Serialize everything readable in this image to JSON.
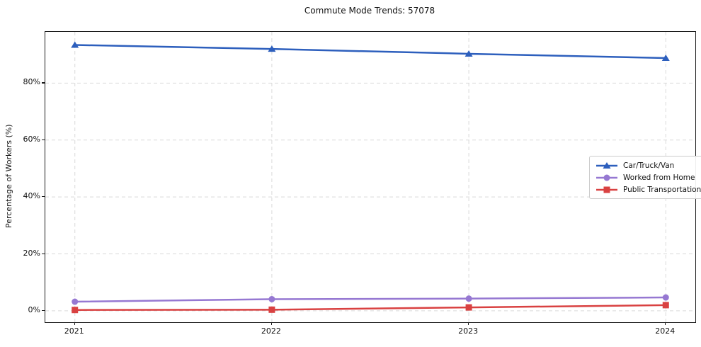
{
  "chart_data": {
    "type": "line",
    "title": "Commute Mode Trends: 57078",
    "xlabel": "",
    "ylabel": "Percentage of Workers (%)",
    "x": [
      2021,
      2022,
      2023,
      2024
    ],
    "xtick_labels": [
      "2021",
      "2022",
      "2023",
      "2024"
    ],
    "ytick_values": [
      0,
      20,
      40,
      60,
      80
    ],
    "ytick_labels": [
      "0%",
      "20%",
      "40%",
      "60%",
      "80%"
    ],
    "xlim": [
      2020.85,
      2024.15
    ],
    "ylim": [
      -4,
      98
    ],
    "grid": true,
    "grid_style": "dashed",
    "grid_color": "#d9d9d9",
    "legend_position": "center-right",
    "series": [
      {
        "name": "Car/Truck/Van",
        "color": "#2d5fbd",
        "marker": "triangle",
        "values": [
          93.4,
          92.0,
          90.3,
          88.8
        ]
      },
      {
        "name": "Worked from Home",
        "color": "#9678d2",
        "marker": "circle",
        "values": [
          3.2,
          4.1,
          4.3,
          4.7
        ]
      },
      {
        "name": "Public Transportation",
        "color": "#d94141",
        "marker": "square",
        "values": [
          0.3,
          0.4,
          1.2,
          2.0
        ]
      }
    ]
  }
}
